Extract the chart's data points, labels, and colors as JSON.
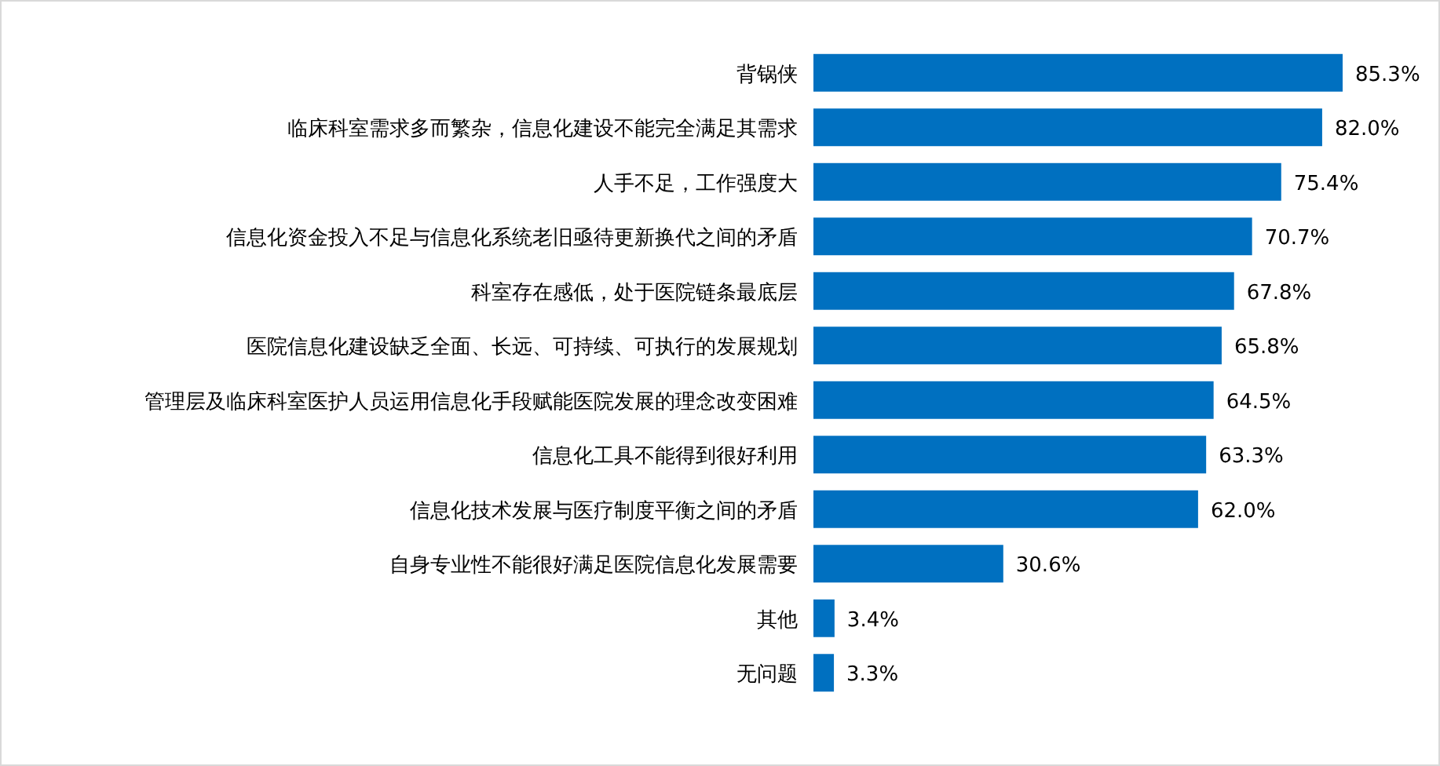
{
  "chart_data": {
    "type": "bar",
    "orientation": "horizontal",
    "categories": [
      "背锅侠",
      "临床科室需求多而繁杂，信息化建设不能完全满足其需求",
      "人手不足，工作强度大",
      "信息化资金投入不足与信息化系统老旧亟待更新换代之间的矛盾",
      "科室存在感低，处于医院链条最底层",
      "医院信息化建设缺乏全面、长远、可持续、可执行的发展规划",
      "管理层及临床科室医护人员运用信息化手段赋能医院发展的理念改变困难",
      "信息化工具不能得到很好利用",
      "信息化技术发展与医疗制度平衡之间的矛盾",
      "自身专业性不能很好满足医院信息化发展需要",
      "其他",
      "无问题"
    ],
    "values": [
      85.3,
      82.0,
      75.4,
      70.7,
      67.8,
      65.8,
      64.5,
      63.3,
      62.0,
      30.6,
      3.4,
      3.3
    ],
    "value_labels": [
      "85.3%",
      "82.0%",
      "75.4%",
      "70.7%",
      "67.8%",
      "65.8%",
      "64.5%",
      "63.3%",
      "62.0%",
      "30.6%",
      "3.4%",
      "3.3%"
    ],
    "color": "#0070c0"
  }
}
